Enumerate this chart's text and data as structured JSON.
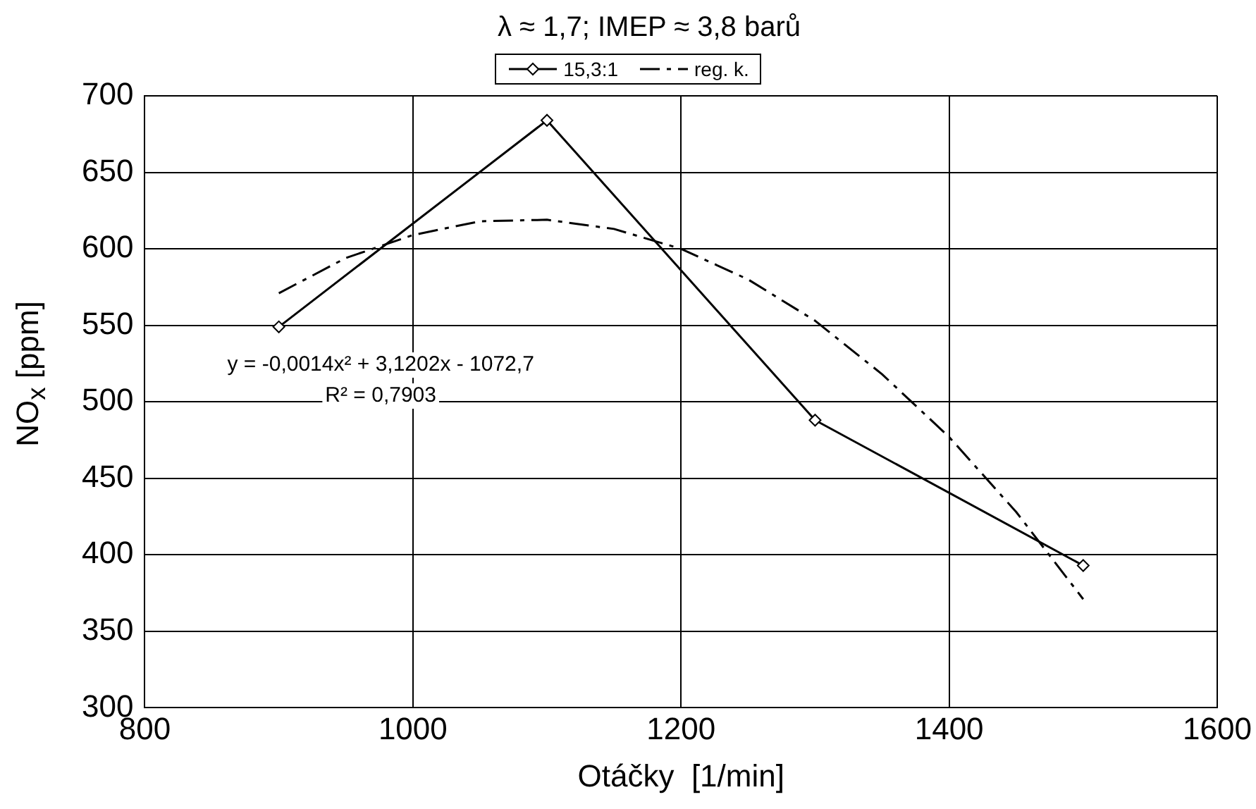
{
  "chart_data": {
    "type": "line",
    "title": "λ ≈ 1,7; IMEP ≈ 3,8 barů",
    "xlabel": "Otáčky  [1/min]",
    "ylabel": "NO$_{x}$  [ppm]",
    "xlim": [
      800,
      1600
    ],
    "xticks": [
      800,
      1000,
      1200,
      1400,
      1600
    ],
    "ylim": [
      300,
      700
    ],
    "yticks": [
      300,
      350,
      400,
      450,
      500,
      550,
      600,
      650,
      700
    ],
    "grid": true,
    "legend": "top",
    "annotations": [
      "y = -0,0014x² + 3,1202x - 1072,7",
      "R² = 0,7903"
    ],
    "series": [
      {
        "name": "15,3:1",
        "color": "#000000",
        "marker": "diamond",
        "line_style": "solid",
        "x": [
          900,
          1100,
          1300,
          1500
        ],
        "values": [
          549,
          684,
          488,
          393
        ]
      },
      {
        "name": "reg. k.",
        "color": "#000000",
        "marker": "none",
        "line_style": "dashed",
        "x": [
          900,
          950,
          1000,
          1050,
          1100,
          1150,
          1200,
          1250,
          1300,
          1350,
          1400,
          1450,
          1500
        ],
        "values": [
          571,
          594,
          609,
          618,
          619,
          613,
          600,
          580,
          553,
          518,
          477,
          428,
          371
        ]
      }
    ]
  }
}
